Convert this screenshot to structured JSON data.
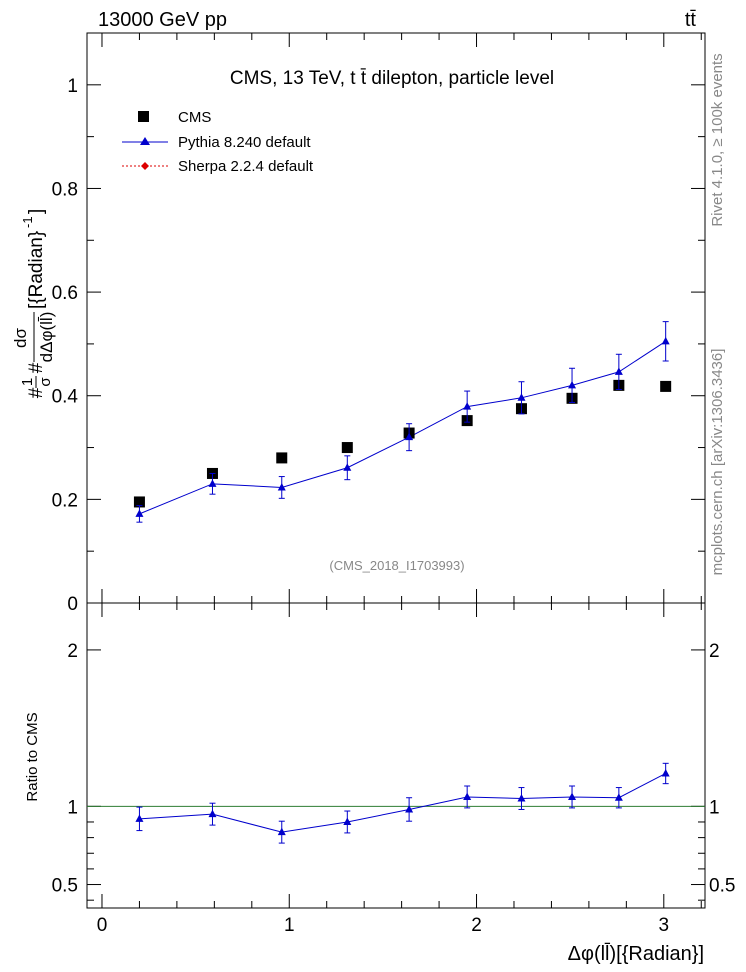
{
  "header": {
    "energy_label": "13000 GeV pp",
    "process_label": "tt̄"
  },
  "side": {
    "rivet_label": "Rivet 4.1.0, ≥ 100k events",
    "url_label": "mcplots.cern.ch [arXiv:1306.3436]"
  },
  "chart_data": [
    {
      "type": "scatter",
      "title": "CMS, 13 TeV, t t̄ dilepton, particle level",
      "watermark": "(CMS_2018_I1703993)",
      "ylabel": "#1/σ # dσ/dΔφ(ll̄) [{Radian}^-1]",
      "ylabel_parts": {
        "prefix": "#",
        "frac_num": "1",
        "frac_den": "σ",
        "mid": "#",
        "dnum": "dσ",
        "dden": "dΔφ(ll̄)",
        "unit": "[{Radian}",
        "unit_exp": "-1",
        "unit_close": "]"
      },
      "xlim": [
        -0.08,
        3.22
      ],
      "ylim": [
        0,
        1.1
      ],
      "yticks": [
        0.2,
        0.4,
        0.6,
        0.8,
        1
      ],
      "ytick_labels": [
        "0.2",
        "0.4",
        "0.6",
        "0.8",
        "1"
      ],
      "ytick_zero_label": "0",
      "legend": [
        {
          "name": "CMS",
          "marker": "square",
          "color": "#000000"
        },
        {
          "name": "Pythia 8.240 default",
          "marker": "triangle",
          "color": "#0000cc"
        },
        {
          "name": "Sherpa 2.2.4 default",
          "marker": "diamond",
          "color": "#dd0000"
        }
      ],
      "series": [
        {
          "name": "CMS",
          "x": [
            0.2,
            0.59,
            0.96,
            1.31,
            1.64,
            1.95,
            2.24,
            2.51,
            2.76,
            3.01
          ],
          "y": [
            0.195,
            0.25,
            0.28,
            0.3,
            0.328,
            0.352,
            0.375,
            0.395,
            0.42,
            0.418
          ],
          "yerr": [
            0.006,
            0.006,
            0.006,
            0.006,
            0.006,
            0.008,
            0.008,
            0.008,
            0.008,
            0.008
          ]
        },
        {
          "name": "Pythia 8.240 default",
          "x": [
            0.2,
            0.59,
            0.96,
            1.31,
            1.64,
            1.95,
            2.24,
            2.51,
            2.76,
            3.01
          ],
          "y": [
            0.172,
            0.23,
            0.223,
            0.261,
            0.32,
            0.379,
            0.396,
            0.42,
            0.446,
            0.505
          ],
          "yerr": [
            0.016,
            0.02,
            0.021,
            0.023,
            0.026,
            0.03,
            0.031,
            0.033,
            0.034,
            0.038
          ]
        }
      ]
    },
    {
      "type": "line",
      "ylabel": "Ratio to CMS",
      "xlabel": "Δφ(ll̄)[{Radian}]",
      "xlim": [
        -0.08,
        3.22
      ],
      "ylim": [
        0.35,
        2.3
      ],
      "xticks": [
        0,
        1,
        2,
        3
      ],
      "xtick_labels": [
        "0",
        "1",
        "2",
        "3"
      ],
      "yticks": [
        0.5,
        1,
        2
      ],
      "ytick_labels": [
        "0.5",
        "1",
        "2"
      ],
      "reference_line": 1,
      "series": [
        {
          "name": "Pythia 8.240 default",
          "x": [
            0.2,
            0.59,
            0.96,
            1.31,
            1.64,
            1.95,
            2.24,
            2.51,
            2.76,
            3.01
          ],
          "y": [
            0.92,
            0.95,
            0.835,
            0.9,
            0.98,
            1.06,
            1.05,
            1.06,
            1.055,
            1.21
          ],
          "yerr": [
            0.075,
            0.07,
            0.07,
            0.07,
            0.075,
            0.07,
            0.07,
            0.07,
            0.065,
            0.065
          ]
        }
      ]
    }
  ]
}
